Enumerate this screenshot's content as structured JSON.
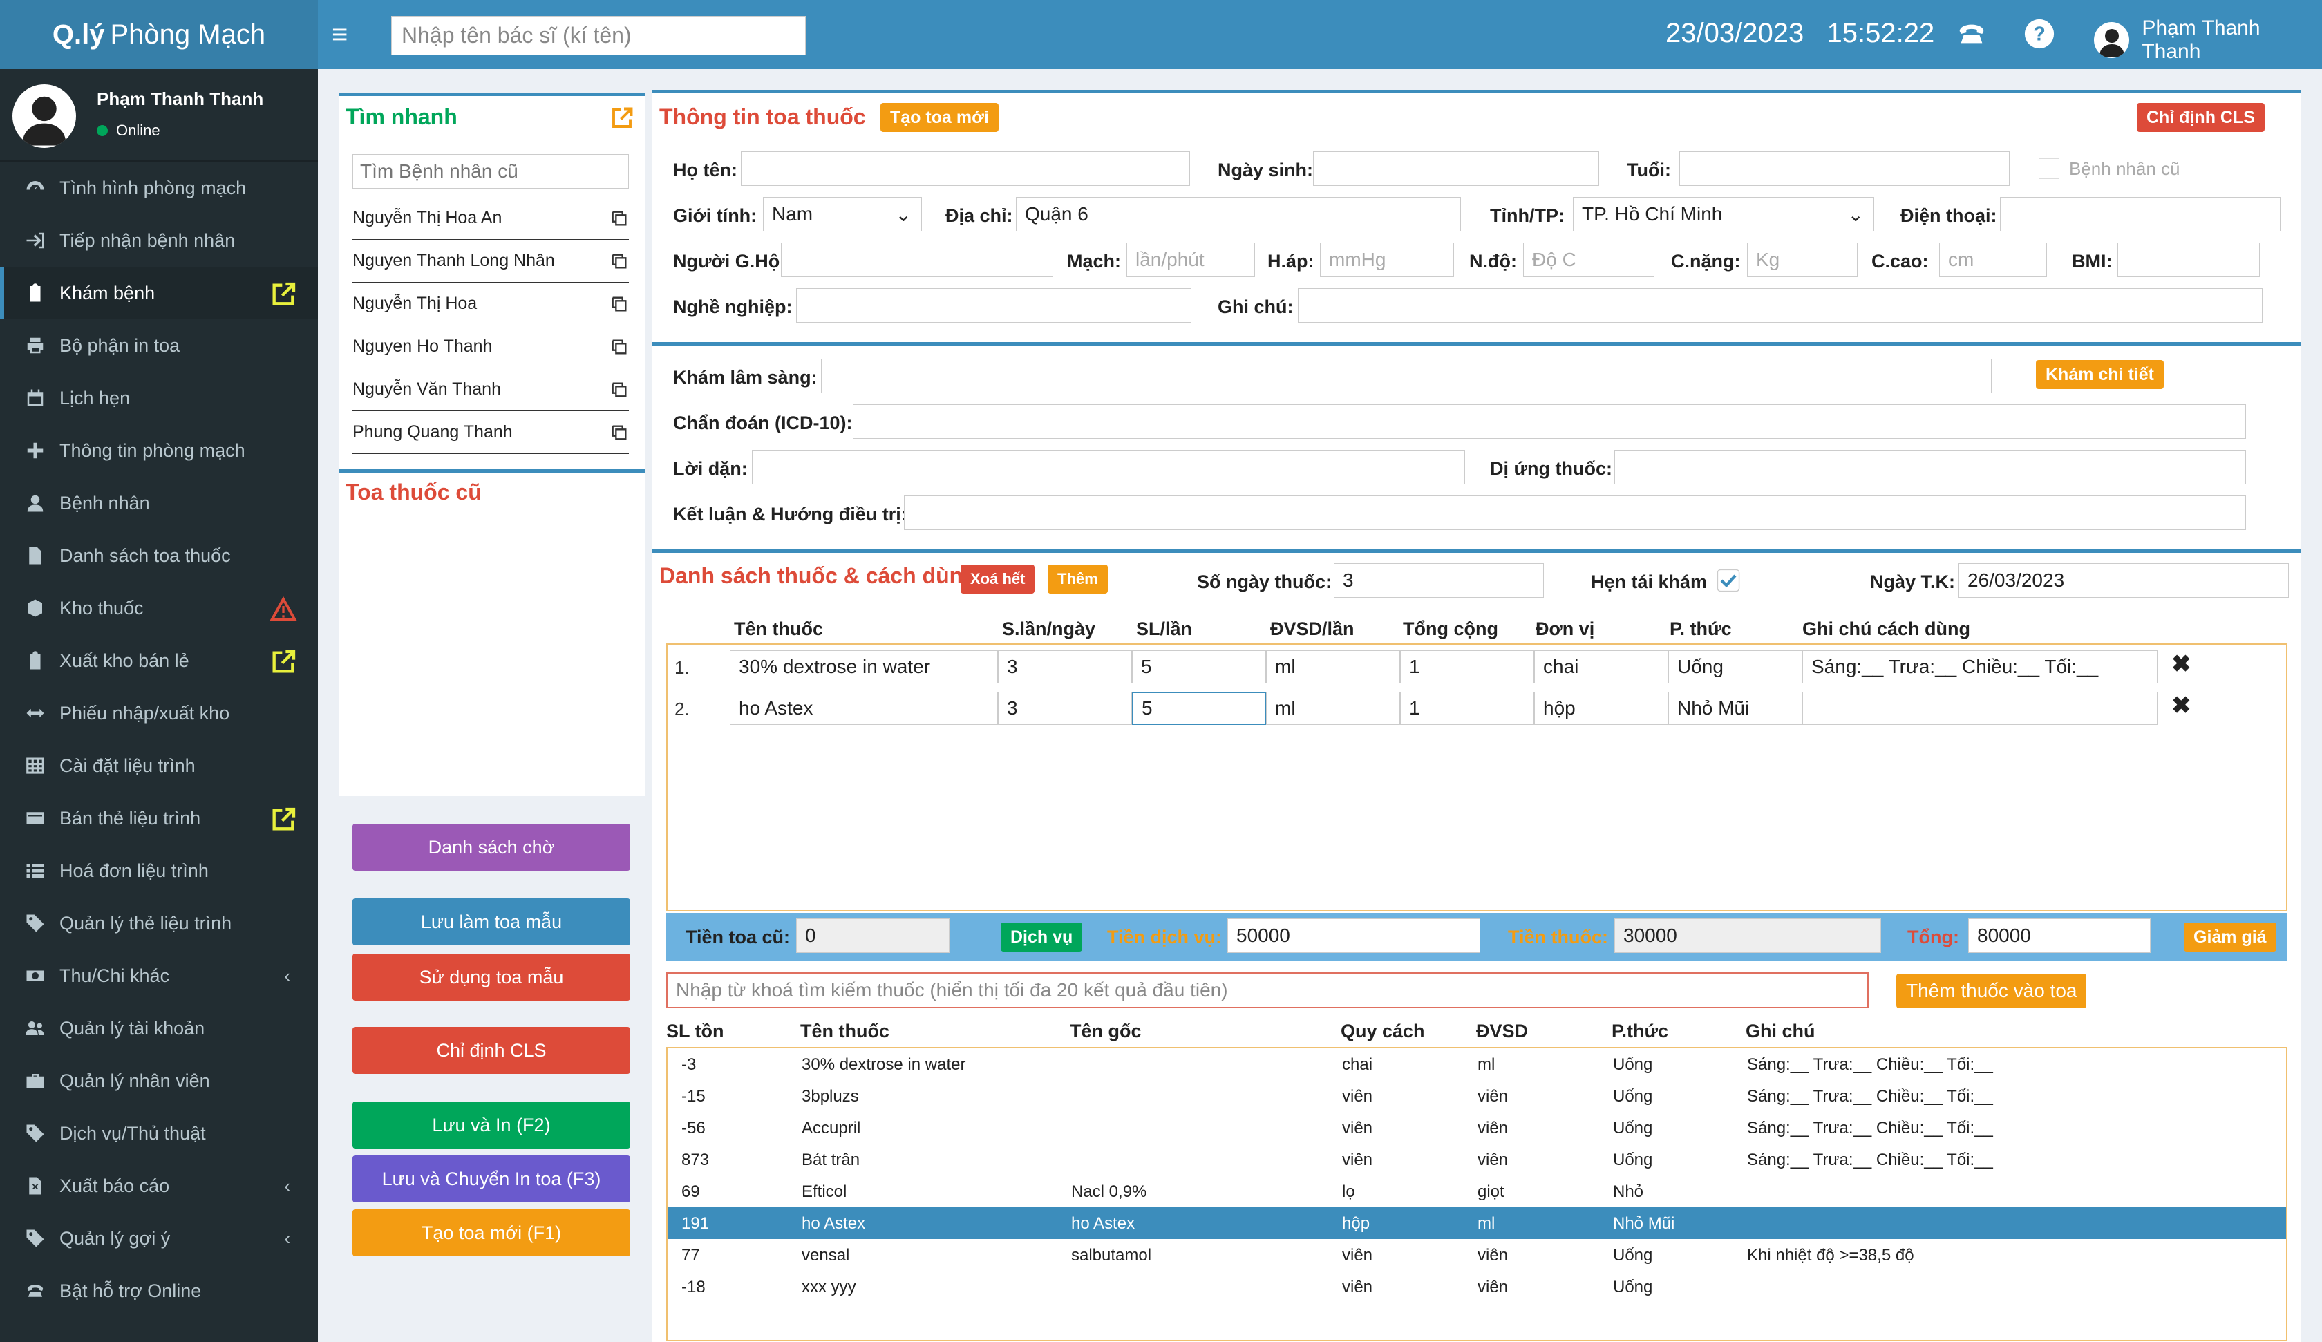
{
  "app": {
    "logo_bold": "Q.lý",
    "logo_rest": "Phòng Mạch"
  },
  "topbar": {
    "doctor_search_placeholder": "Nhập tên bác sĩ (kí tên)",
    "date": "23/03/2023",
    "time": "15:52:22",
    "user_name": "Phạm Thanh Thanh"
  },
  "sidebar": {
    "user_name": "Phạm Thanh Thanh",
    "status": "Online",
    "items": [
      {
        "label": "Tình hình phòng mạch",
        "icon": "dashboard-icon"
      },
      {
        "label": "Tiếp nhận bệnh nhân",
        "icon": "signin-icon"
      },
      {
        "label": "Khám bệnh",
        "icon": "clipboard-icon"
      },
      {
        "label": "Bộ phận in toa",
        "icon": "print-icon"
      },
      {
        "label": "Lịch hẹn",
        "icon": "calendar-icon"
      },
      {
        "label": "Thông tin phòng mạch",
        "icon": "plus-icon"
      },
      {
        "label": "Bệnh nhân",
        "icon": "user-icon"
      },
      {
        "label": "Danh sách toa thuốc",
        "icon": "file-icon"
      },
      {
        "label": "Kho thuốc",
        "icon": "cubes-icon"
      },
      {
        "label": "Xuất kho bán lẻ",
        "icon": "clipboard-icon"
      },
      {
        "label": "Phiếu nhập/xuất kho",
        "icon": "exchange-icon"
      },
      {
        "label": "Cài đặt liệu trình",
        "icon": "table-icon"
      },
      {
        "label": "Bán thẻ liệu trình",
        "icon": "card-icon"
      },
      {
        "label": "Hoá đơn liệu trình",
        "icon": "list-icon"
      },
      {
        "label": "Quản lý thẻ liệu trình",
        "icon": "tags-icon"
      },
      {
        "label": "Thu/Chi khác",
        "icon": "money-icon"
      },
      {
        "label": "Quản lý tài khoản",
        "icon": "users-icon"
      },
      {
        "label": "Quản lý nhân viên",
        "icon": "briefcase-icon"
      },
      {
        "label": "Dịch vụ/Thủ thuật",
        "icon": "tags-icon"
      },
      {
        "label": "Xuất báo cáo",
        "icon": "report-icon"
      },
      {
        "label": "Quản lý gợi ý",
        "icon": "tags-icon"
      },
      {
        "label": "Bật hỗ trợ Online",
        "icon": "phone-icon"
      }
    ]
  },
  "quick": {
    "title": "Tìm nhanh",
    "search_placeholder": "Tìm Bệnh nhân cũ",
    "patients": [
      "Nguyễn Thị Hoa An",
      "Nguyen Thanh Long Nhân",
      "Nguyễn Thị Hoa",
      "Nguyen Ho Thanh",
      "Nguyễn Văn Thanh",
      "Phung Quang Thanh"
    ],
    "old_title": "Toa thuốc cũ"
  },
  "left_buttons": {
    "waitlist": "Danh sách chờ",
    "save_template": "Lưu làm toa mẫu",
    "use_template": "Sử dụng toa mẫu",
    "cls": "Chỉ định CLS",
    "save_print": "Lưu và In (F2)",
    "save_transfer": "Lưu và Chuyển In toa (F3)",
    "new_rx": "Tạo toa mới (F1)"
  },
  "rx": {
    "title": "Thông tin toa thuốc",
    "new_button": "Tạo toa mới",
    "cls_button": "Chỉ định CLS",
    "labels": {
      "name": "Họ tên:",
      "dob": "Ngày sinh:",
      "age": "Tuổi:",
      "old_patient": "Bệnh nhân cũ",
      "gender": "Giới tính:",
      "address": "Địa chỉ:",
      "province": "Tỉnh/TP:",
      "phone": "Điện thoại:",
      "guardian": "Người G.Hộ:",
      "pulse": "Mạch:",
      "bp": "H.áp:",
      "temp": "N.độ:",
      "weight": "C.nặng:",
      "height": "C.cao:",
      "bmi": "BMI:",
      "job": "Nghề nghiệp:",
      "note": "Ghi chú:"
    },
    "values": {
      "gender": "Nam",
      "address": "Quận 6",
      "province": "TP. Hồ Chí Minh"
    },
    "placeholders": {
      "pulse": "lần/phút",
      "bp": "mmHg",
      "temp": "Độ C",
      "weight": "Kg",
      "height": "cm"
    }
  },
  "exam": {
    "clinical": "Khám lâm sàng:",
    "detail_button": "Khám chi tiết",
    "diagnosis": "Chẩn đoán (ICD-10):",
    "advice": "Lời dặn:",
    "allergy": "Dị ứng thuốc:",
    "conclusion": "Kết luận & Hướng điều trị:"
  },
  "meds": {
    "title": "Danh sách thuốc & cách dùng",
    "clear_button": "Xoá hết",
    "add_button": "Thêm",
    "days_label": "Số ngày thuốc:",
    "days_value": "3",
    "recheck_label": "Hẹn tái khám",
    "recheck_date_label": "Ngày T.K:",
    "recheck_date": "26/03/2023",
    "headers": [
      "Tên thuốc",
      "S.lần/ngày",
      "SL/lần",
      "ĐVSD/lần",
      "Tổng cộng",
      "Đơn vị",
      "P. thức",
      "Ghi chú cách dùng"
    ],
    "rows": [
      {
        "no": "1.",
        "name": "30% dextrose in water",
        "times": "3",
        "qty": "5",
        "unit_use": "ml",
        "total": "1",
        "unit": "chai",
        "method": "Uống",
        "note": "Sáng:__ Trưa:__ Chiều:__ Tối:__"
      },
      {
        "no": "2.",
        "name": "ho Astex",
        "times": "3",
        "qty": "5",
        "unit_use": "ml",
        "total": "1",
        "unit": "hộp",
        "method": "Nhỏ Mũi",
        "note": ""
      }
    ]
  },
  "totals": {
    "old_label": "Tiền toa cũ:",
    "old_value": "0",
    "service_button": "Dịch vụ",
    "service_label": "Tiền dịch vụ:",
    "service_value": "50000",
    "drug_label": "Tiền thuốc:",
    "drug_value": "30000",
    "total_label": "Tổng:",
    "total_value": "80000",
    "discount_button": "Giảm giá"
  },
  "search": {
    "placeholder": "Nhập từ khoá tìm kiếm thuốc (hiển thị tối đa 20 kết quả đầu tiên)",
    "add_button": "Thêm thuốc vào toa"
  },
  "results": {
    "headers": [
      "SL tồn",
      "Tên thuốc",
      "Tên gốc",
      "Quy cách",
      "ĐVSD",
      "P.thức",
      "Ghi chú"
    ],
    "rows": [
      [
        "-3",
        "30% dextrose in water",
        "",
        "chai",
        "ml",
        "Uống",
        "Sáng:__ Trưa:__ Chiều:__ Tối:__"
      ],
      [
        "-15",
        "3bpluzs",
        "",
        "viên",
        "viên",
        "Uống",
        "Sáng:__ Trưa:__ Chiều:__ Tối:__"
      ],
      [
        "-56",
        "Accupril",
        "",
        "viên",
        "viên",
        "Uống",
        "Sáng:__ Trưa:__ Chiều:__ Tối:__"
      ],
      [
        "873",
        "Bát trân",
        "",
        "viên",
        "viên",
        "Uống",
        "Sáng:__ Trưa:__ Chiều:__ Tối:__"
      ],
      [
        "69",
        "Efticol",
        "Nacl 0,9%",
        "lọ",
        "giọt",
        "Nhỏ",
        ""
      ],
      [
        "191",
        "ho Astex",
        "ho Astex",
        "hộp",
        "ml",
        "Nhỏ Mũi",
        ""
      ],
      [
        "77",
        "vensal",
        "salbutamol",
        "viên",
        "viên",
        "Uống",
        "Khi nhiệt độ >=38,5 độ"
      ],
      [
        "-18",
        "xxx yyy",
        "",
        "viên",
        "viên",
        "Uống",
        ""
      ]
    ],
    "selected_row": 5
  }
}
